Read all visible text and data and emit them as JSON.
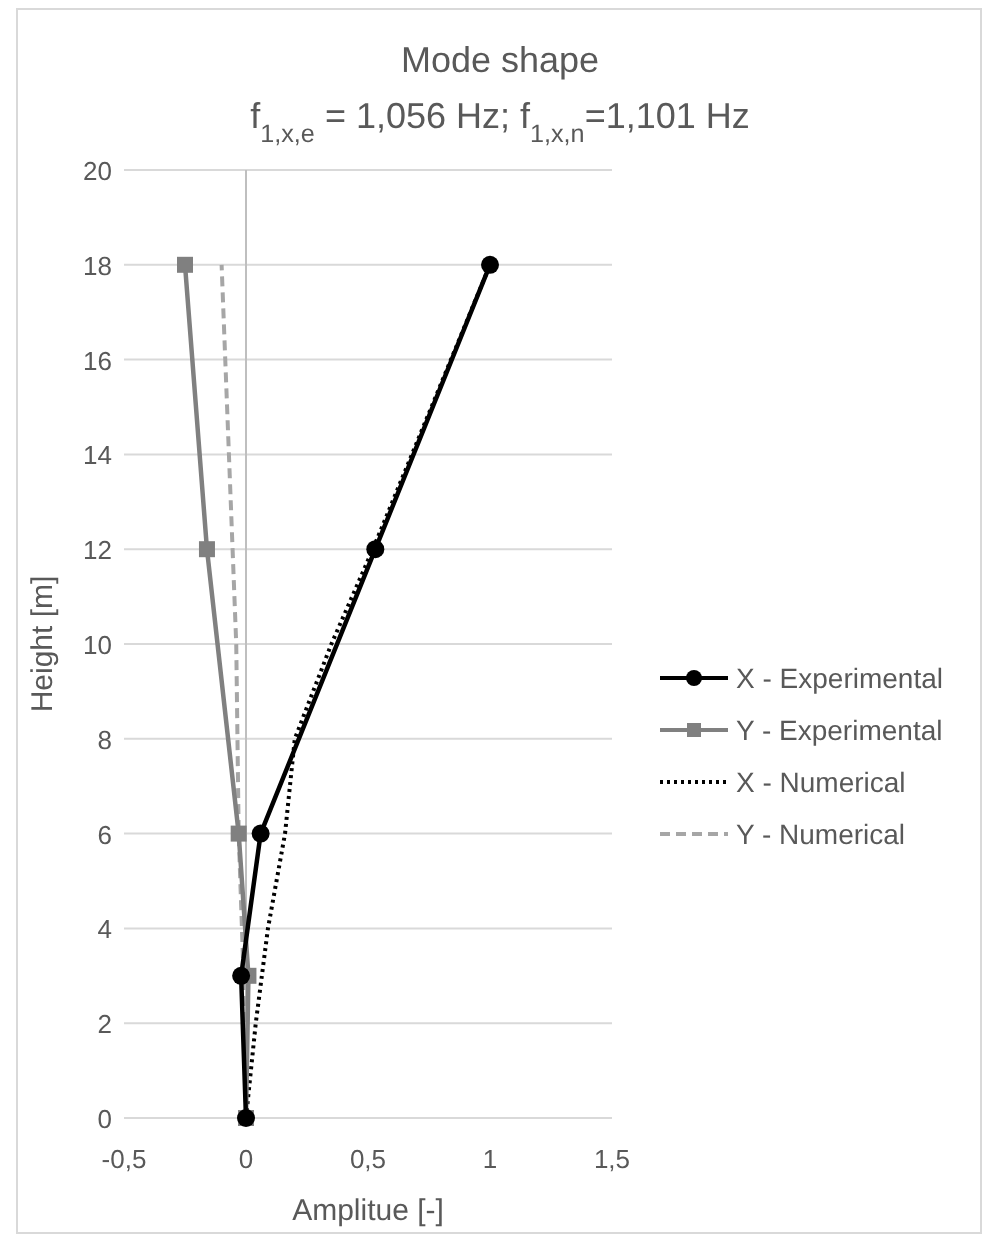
{
  "chart_data": {
    "type": "line",
    "title": "Mode shape",
    "subtitle": "f$_{1,x,e}$ = 1,056 Hz; f$_{1,x,n}$=1,101 Hz",
    "xlabel": "Amplitue [-]",
    "ylabel": "Height [m]",
    "xlim": [
      -0.5,
      1.5
    ],
    "xticks": [
      {
        "value": -0.5,
        "label": "-0,5"
      },
      0,
      {
        "value": 0.5,
        "label": "0,5"
      },
      1,
      {
        "value": 1.5,
        "label": "1,5"
      }
    ],
    "ylim": [
      0,
      20
    ],
    "yticks": [
      0,
      2,
      4,
      6,
      8,
      10,
      12,
      14,
      16,
      18,
      20
    ],
    "grid": "y",
    "legend": "right",
    "series": [
      {
        "name": "X - Experimental",
        "color": "#000000",
        "marker": "circle",
        "line_style": "solid",
        "x": [
          0,
          -0.02,
          0.06,
          0.53,
          1
        ],
        "values": [
          0,
          3,
          6,
          12,
          18
        ]
      },
      {
        "name": "Y - Experimental",
        "color": "#808080",
        "marker": "square",
        "line_style": "solid",
        "x": [
          0,
          0.01,
          -0.03,
          -0.16,
          -0.25
        ],
        "values": [
          0,
          3,
          6,
          12,
          18
        ]
      },
      {
        "name": "X - Numerical",
        "color": "#000000",
        "marker": "none",
        "line_style": "dotted",
        "x": [
          0,
          0.04,
          0.09,
          0.16,
          0.2,
          0.35,
          0.52,
          0.68,
          0.84,
          1
        ],
        "values": [
          0,
          2,
          4,
          6,
          8,
          10,
          12,
          14,
          16,
          18
        ]
      },
      {
        "name": "Y - Numerical",
        "color": "#a6a6a6",
        "marker": "none",
        "line_style": "dashed",
        "x": [
          0,
          -0.01,
          -0.03,
          -0.04,
          -0.055,
          -0.1
        ],
        "values": [
          0,
          3,
          6,
          10,
          12,
          18
        ]
      }
    ]
  }
}
